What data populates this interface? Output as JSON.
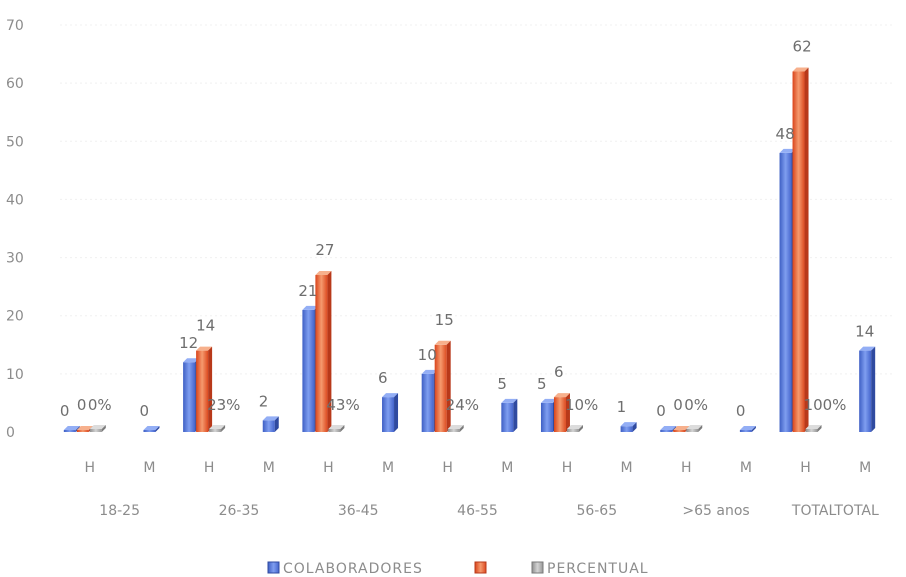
{
  "chart_data": {
    "type": "bar",
    "title": "",
    "xlabel": "",
    "ylabel": "",
    "ylim": [
      0,
      70
    ],
    "yticks": [
      0,
      10,
      20,
      30,
      40,
      50,
      60,
      70
    ],
    "grid": true,
    "legend_position": "bottom",
    "groups": [
      {
        "label": "18-25",
        "subcategories": [
          "H",
          "M"
        ]
      },
      {
        "label": "26-35",
        "subcategories": [
          "H",
          "M"
        ]
      },
      {
        "label": "36-45",
        "subcategories": [
          "H",
          "M"
        ]
      },
      {
        "label": "46-55",
        "subcategories": [
          "H",
          "M"
        ]
      },
      {
        "label": "56-65",
        "subcategories": [
          "H",
          "M"
        ]
      },
      {
        "label": ">65 anos",
        "subcategories": [
          "H",
          "M"
        ]
      },
      {
        "label": "TOTALTOTAL",
        "subcategories": [
          "H",
          "M"
        ]
      }
    ],
    "series": [
      {
        "name": "COLABORADORES",
        "color": "#4a6fd6",
        "values": [
          [
            0,
            0
          ],
          [
            12,
            2
          ],
          [
            21,
            6
          ],
          [
            10,
            5
          ],
          [
            5,
            1
          ],
          [
            0,
            0
          ],
          [
            48,
            14
          ]
        ],
        "labels": [
          [
            "0",
            "0"
          ],
          [
            "12",
            "2"
          ],
          [
            "21",
            "6"
          ],
          [
            "10",
            "5"
          ],
          [
            "5",
            "1"
          ],
          [
            "0",
            "0"
          ],
          [
            "48",
            "14"
          ]
        ]
      },
      {
        "name": "",
        "color": "#e8572a",
        "values": [
          [
            0,
            null
          ],
          [
            14,
            null
          ],
          [
            27,
            null
          ],
          [
            15,
            null
          ],
          [
            6,
            null
          ],
          [
            0,
            null
          ],
          [
            62,
            null
          ]
        ],
        "labels": [
          [
            "0",
            ""
          ],
          [
            "14",
            ""
          ],
          [
            "27",
            ""
          ],
          [
            "15",
            ""
          ],
          [
            "6",
            ""
          ],
          [
            "0",
            ""
          ],
          [
            "62",
            ""
          ]
        ]
      },
      {
        "name": "PERCENTUAL",
        "color": "#a6a6a6",
        "values": [
          [
            0,
            null
          ],
          [
            0.23,
            null
          ],
          [
            0.43,
            null
          ],
          [
            0.24,
            null
          ],
          [
            0.1,
            null
          ],
          [
            0,
            null
          ],
          [
            1.0,
            null
          ]
        ],
        "labels": [
          [
            "0%",
            ""
          ],
          [
            "23%",
            ""
          ],
          [
            "43%",
            ""
          ],
          [
            "24%",
            ""
          ],
          [
            "10%",
            ""
          ],
          [
            "0%",
            ""
          ],
          [
            "100%",
            ""
          ]
        ]
      }
    ]
  }
}
